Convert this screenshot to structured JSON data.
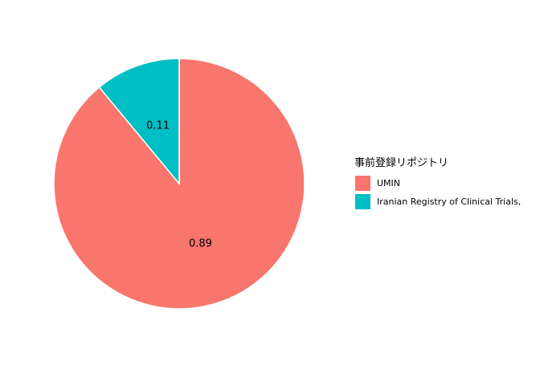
{
  "chart_data": {
    "type": "pie",
    "legend_title": "事前登録リポジトリ",
    "legend_position": "right",
    "start_angle": "12 o'clock",
    "direction": "counterclockwise",
    "slices": [
      {
        "name": "UMIN",
        "value": 0.89,
        "label": "0.89",
        "color": "#F8766D"
      },
      {
        "name": "Iranian Registry of Clinical Trials,",
        "value": 0.11,
        "label": "0.11",
        "color": "#00BFC4"
      }
    ]
  }
}
